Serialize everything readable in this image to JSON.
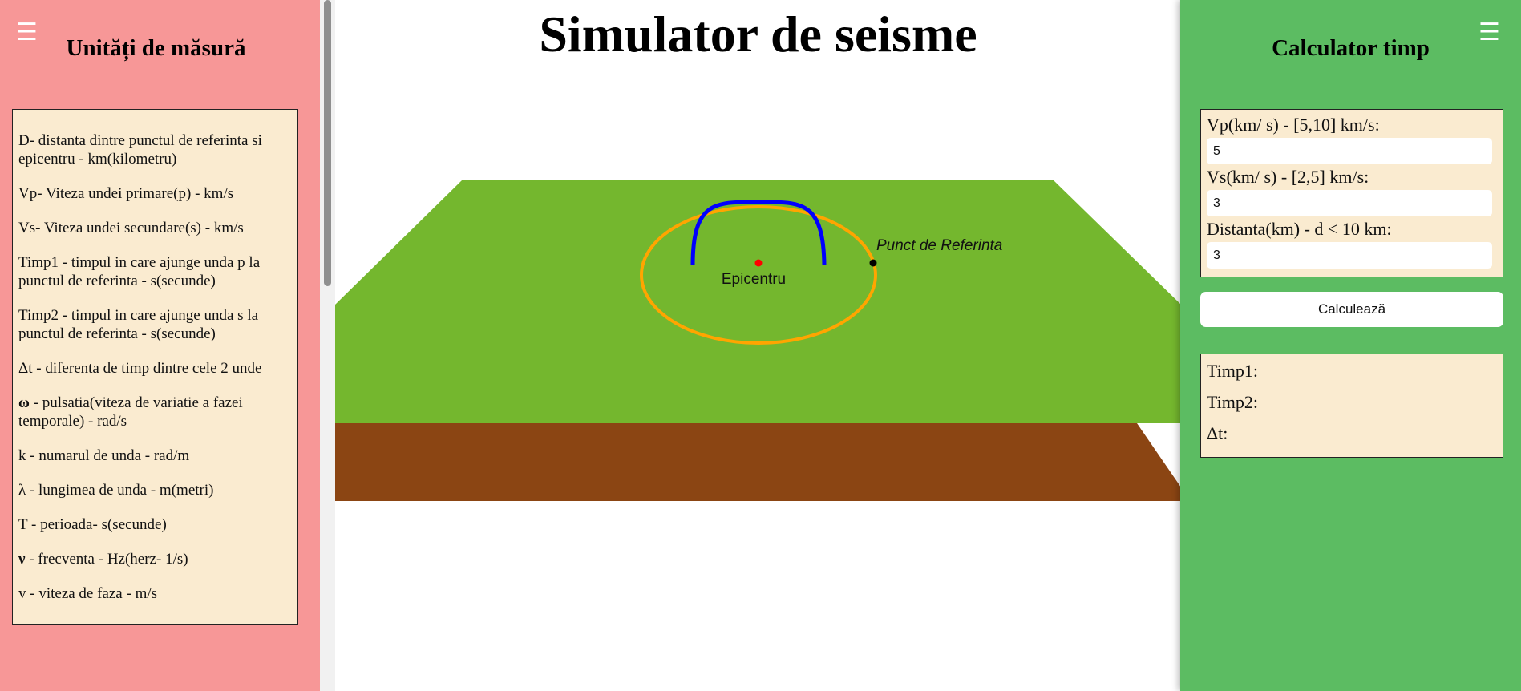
{
  "page": {
    "title": "Simulator de seisme"
  },
  "left_panel": {
    "menu_icon": "☰",
    "title": "Unități de măsură",
    "units": [
      {
        "symbol": "",
        "text": "D- distanta dintre punctul de referinta si epicentru - km(kilometru)"
      },
      {
        "symbol": "",
        "text": "Vp- Viteza undei primare(p) - km/s"
      },
      {
        "symbol": "",
        "text": "Vs- Viteza undei secundare(s) - km/s"
      },
      {
        "symbol": "",
        "text": "Timp1 - timpul in care ajunge unda p la punctul de referinta - s(secunde)"
      },
      {
        "symbol": "",
        "text": "Timp2 - timpul in care ajunge unda s la punctul de referinta - s(secunde)"
      },
      {
        "symbol": "",
        "text": "Δt - diferenta de timp dintre cele 2 unde"
      },
      {
        "symbol": "ω",
        "text": " - pulsatia(viteza de variatie a fazei temporale) - rad/s"
      },
      {
        "symbol": "",
        "text": "k - numarul de unda - rad/m"
      },
      {
        "symbol": "",
        "text": "λ - lungimea de unda - m(metri)"
      },
      {
        "symbol": "",
        "text": "T - perioada- s(secunde)"
      },
      {
        "symbol": "ν",
        "text": " - frecventa - Hz(herz- 1/s)"
      },
      {
        "symbol": "",
        "text": "v - viteza de faza - m/s"
      }
    ]
  },
  "scene": {
    "epicenter_label": "Epicentru",
    "reference_label": "Punct de Referinta",
    "colors": {
      "ground_top": "#74b72e",
      "ground_side": "#8b4513",
      "circle": "#ffa500",
      "wave": "#0000ff",
      "epicenter": "#ff0000",
      "reference": "#000000"
    }
  },
  "right_panel": {
    "menu_icon": "☰",
    "title": "Calculator timp",
    "vp_label": "Vp(km/ s) - [5,10] km/s:",
    "vp_value": "5",
    "vs_label": "Vs(km/ s) - [2,5] km/s:",
    "vs_value": "3",
    "distance_label": "Distanta(km) - d < 10 km:",
    "distance_value": "3",
    "calculate_button": "Calculează",
    "results": {
      "timp1_label": "Timp1:",
      "timp2_label": "Timp2:",
      "delta_label": "Δt:"
    }
  }
}
